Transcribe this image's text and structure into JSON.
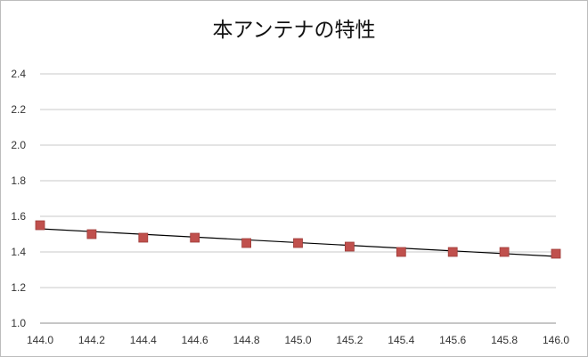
{
  "chart_data": {
    "type": "scatter",
    "title": "本アンテナの特性",
    "xlabel": "",
    "ylabel": "",
    "xlim": [
      144.0,
      146.0
    ],
    "ylim": [
      1.0,
      2.4
    ],
    "x_ticks": [
      "144.0",
      "144.2",
      "144.4",
      "144.6",
      "144.8",
      "145.0",
      "145.2",
      "145.4",
      "145.6",
      "145.8",
      "146.0"
    ],
    "y_ticks": [
      "1.0",
      "1.2",
      "1.4",
      "1.6",
      "1.8",
      "2.0",
      "2.2",
      "2.4"
    ],
    "grid": true,
    "legend": "none",
    "series": [
      {
        "x": [
          144.0,
          144.2,
          144.4,
          144.6,
          144.8,
          145.0,
          145.2,
          145.4,
          145.6,
          145.8,
          146.0
        ],
        "y": [
          1.55,
          1.5,
          1.48,
          1.48,
          1.45,
          1.45,
          1.43,
          1.4,
          1.4,
          1.4,
          1.39
        ],
        "marker": "square",
        "color": "#c0504d"
      }
    ],
    "trendline": {
      "type": "linear",
      "x": [
        144.0,
        146.0
      ],
      "y": [
        1.53,
        1.375
      ],
      "color": "#000000"
    }
  }
}
